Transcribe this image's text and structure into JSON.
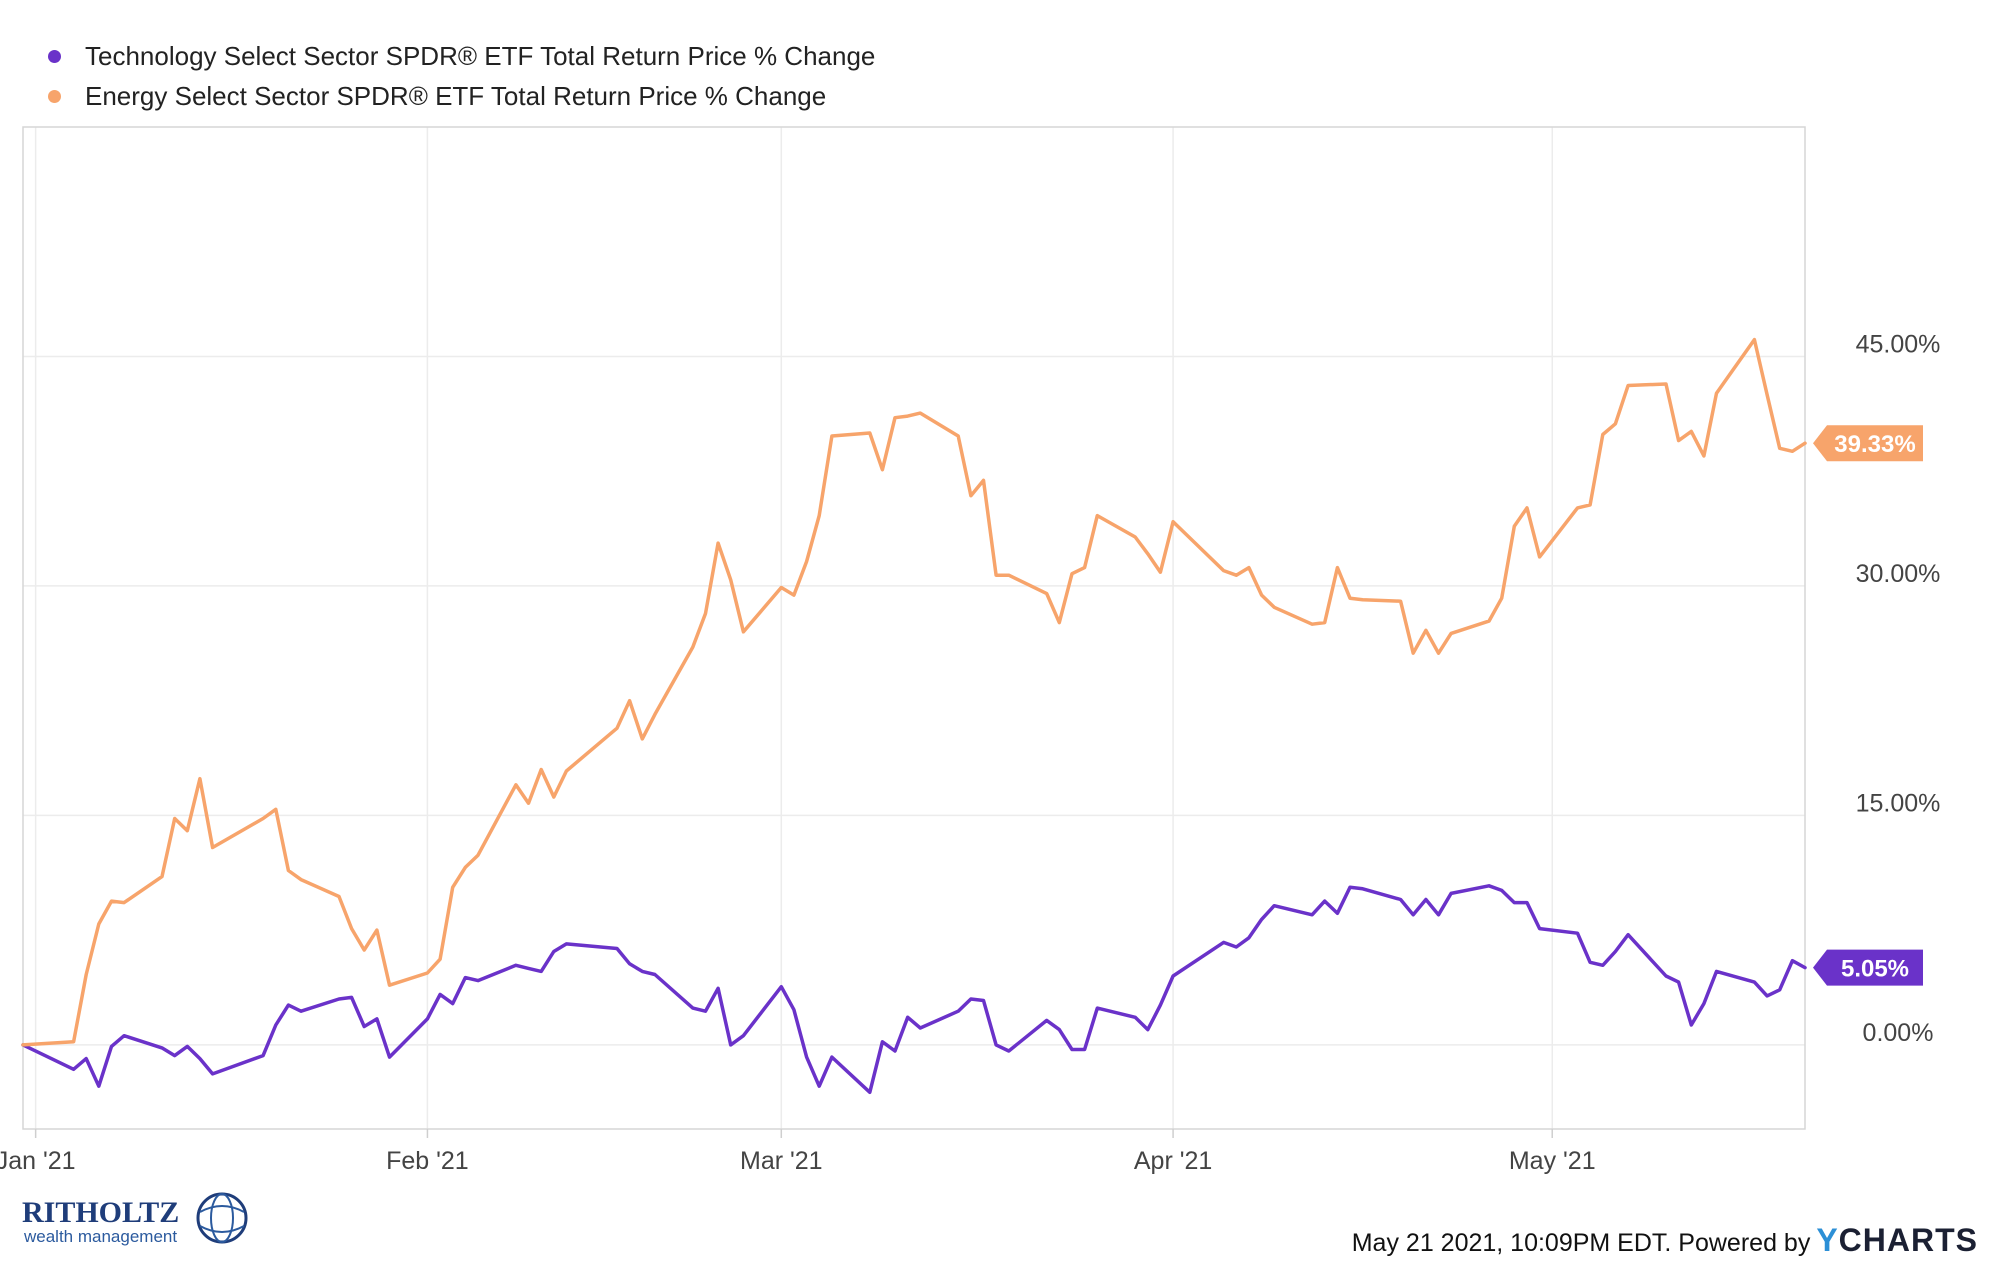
{
  "chart_data": {
    "type": "line",
    "title": "",
    "xlabel": "",
    "ylabel": "",
    "x_ticks": [
      "Jan '21",
      "Feb '21",
      "Mar '21",
      "Apr '21",
      "May '21"
    ],
    "y_ticks": [
      "0.00%",
      "15.00%",
      "30.00%",
      "45.00%"
    ],
    "ylim": [
      -5.5,
      60
    ],
    "xlim": [
      "2020-12-31",
      "2021-05-21"
    ],
    "grid": true,
    "legend_position": "top-left",
    "series": [
      {
        "name": "Technology Select Sector SPDR® ETF Total Return Price % Change",
        "color": "#6a32c9",
        "end_label": "5.05%",
        "points": [
          [
            "2020-12-31",
            0.0
          ],
          [
            "2021-01-04",
            -1.6
          ],
          [
            "2021-01-05",
            -0.9
          ],
          [
            "2021-01-06",
            -2.7
          ],
          [
            "2021-01-07",
            -0.1
          ],
          [
            "2021-01-08",
            0.6
          ],
          [
            "2021-01-11",
            -0.2
          ],
          [
            "2021-01-12",
            -0.7
          ],
          [
            "2021-01-13",
            -0.1
          ],
          [
            "2021-01-14",
            -0.9
          ],
          [
            "2021-01-15",
            -1.9
          ],
          [
            "2021-01-19",
            -0.7
          ],
          [
            "2021-01-20",
            1.3
          ],
          [
            "2021-01-21",
            2.6
          ],
          [
            "2021-01-22",
            2.2
          ],
          [
            "2021-01-25",
            3.0
          ],
          [
            "2021-01-26",
            3.1
          ],
          [
            "2021-01-27",
            1.2
          ],
          [
            "2021-01-28",
            1.7
          ],
          [
            "2021-01-29",
            -0.8
          ],
          [
            "2021-02-01",
            1.7
          ],
          [
            "2021-02-02",
            3.3
          ],
          [
            "2021-02-03",
            2.7
          ],
          [
            "2021-02-04",
            4.4
          ],
          [
            "2021-02-05",
            4.2
          ],
          [
            "2021-02-08",
            5.2
          ],
          [
            "2021-02-09",
            5.0
          ],
          [
            "2021-02-10",
            4.8
          ],
          [
            "2021-02-11",
            6.1
          ],
          [
            "2021-02-12",
            6.6
          ],
          [
            "2021-02-16",
            6.3
          ],
          [
            "2021-02-17",
            5.3
          ],
          [
            "2021-02-18",
            4.8
          ],
          [
            "2021-02-19",
            4.6
          ],
          [
            "2021-02-22",
            2.4
          ],
          [
            "2021-02-23",
            2.2
          ],
          [
            "2021-02-24",
            3.7
          ],
          [
            "2021-02-25",
            0.0
          ],
          [
            "2021-02-26",
            0.6
          ],
          [
            "2021-03-01",
            3.8
          ],
          [
            "2021-03-02",
            2.3
          ],
          [
            "2021-03-03",
            -0.8
          ],
          [
            "2021-03-04",
            -2.7
          ],
          [
            "2021-03-05",
            -0.8
          ],
          [
            "2021-03-08",
            -3.1
          ],
          [
            "2021-03-09",
            0.2
          ],
          [
            "2021-03-10",
            -0.4
          ],
          [
            "2021-03-11",
            1.8
          ],
          [
            "2021-03-12",
            1.1
          ],
          [
            "2021-03-15",
            2.2
          ],
          [
            "2021-03-16",
            3.0
          ],
          [
            "2021-03-17",
            2.9
          ],
          [
            "2021-03-18",
            0.0
          ],
          [
            "2021-03-19",
            -0.4
          ],
          [
            "2021-03-22",
            1.6
          ],
          [
            "2021-03-23",
            1.0
          ],
          [
            "2021-03-24",
            -0.3
          ],
          [
            "2021-03-25",
            -0.3
          ],
          [
            "2021-03-26",
            2.4
          ],
          [
            "2021-03-29",
            1.8
          ],
          [
            "2021-03-30",
            1.0
          ],
          [
            "2021-03-31",
            2.6
          ],
          [
            "2021-04-01",
            4.5
          ],
          [
            "2021-04-05",
            6.7
          ],
          [
            "2021-04-06",
            6.4
          ],
          [
            "2021-04-07",
            7.0
          ],
          [
            "2021-04-08",
            8.2
          ],
          [
            "2021-04-09",
            9.1
          ],
          [
            "2021-04-12",
            8.5
          ],
          [
            "2021-04-13",
            9.4
          ],
          [
            "2021-04-14",
            8.6
          ],
          [
            "2021-04-15",
            10.3
          ],
          [
            "2021-04-16",
            10.2
          ],
          [
            "2021-04-19",
            9.5
          ],
          [
            "2021-04-20",
            8.5
          ],
          [
            "2021-04-21",
            9.5
          ],
          [
            "2021-04-22",
            8.5
          ],
          [
            "2021-04-23",
            9.9
          ],
          [
            "2021-04-26",
            10.4
          ],
          [
            "2021-04-27",
            10.1
          ],
          [
            "2021-04-28",
            9.3
          ],
          [
            "2021-04-29",
            9.3
          ],
          [
            "2021-04-30",
            7.6
          ],
          [
            "2021-05-03",
            7.3
          ],
          [
            "2021-05-04",
            5.4
          ],
          [
            "2021-05-05",
            5.2
          ],
          [
            "2021-05-06",
            6.1
          ],
          [
            "2021-05-07",
            7.2
          ],
          [
            "2021-05-10",
            4.5
          ],
          [
            "2021-05-11",
            4.1
          ],
          [
            "2021-05-12",
            1.3
          ],
          [
            "2021-05-13",
            2.7
          ],
          [
            "2021-05-14",
            4.8
          ],
          [
            "2021-05-17",
            4.1
          ],
          [
            "2021-05-18",
            3.2
          ],
          [
            "2021-05-19",
            3.6
          ],
          [
            "2021-05-20",
            5.5
          ],
          [
            "2021-05-21",
            5.05
          ]
        ]
      },
      {
        "name": "Energy Select Sector SPDR® ETF Total Return Price % Change",
        "color": "#f7a46b",
        "end_label": "39.33%",
        "points": [
          [
            "2020-12-31",
            0.0
          ],
          [
            "2021-01-04",
            0.2
          ],
          [
            "2021-01-05",
            4.6
          ],
          [
            "2021-01-06",
            7.9
          ],
          [
            "2021-01-07",
            9.4
          ],
          [
            "2021-01-08",
            9.3
          ],
          [
            "2021-01-11",
            11.0
          ],
          [
            "2021-01-12",
            14.8
          ],
          [
            "2021-01-13",
            14.0
          ],
          [
            "2021-01-14",
            17.4
          ],
          [
            "2021-01-15",
            12.9
          ],
          [
            "2021-01-19",
            14.8
          ],
          [
            "2021-01-20",
            15.4
          ],
          [
            "2021-01-21",
            11.4
          ],
          [
            "2021-01-22",
            10.8
          ],
          [
            "2021-01-25",
            9.7
          ],
          [
            "2021-01-26",
            7.6
          ],
          [
            "2021-01-27",
            6.2
          ],
          [
            "2021-01-28",
            7.5
          ],
          [
            "2021-01-29",
            3.9
          ],
          [
            "2021-02-01",
            4.7
          ],
          [
            "2021-02-02",
            5.6
          ],
          [
            "2021-02-03",
            10.3
          ],
          [
            "2021-02-04",
            11.6
          ],
          [
            "2021-02-05",
            12.4
          ],
          [
            "2021-02-08",
            17.0
          ],
          [
            "2021-02-09",
            15.8
          ],
          [
            "2021-02-10",
            18.0
          ],
          [
            "2021-02-11",
            16.2
          ],
          [
            "2021-02-12",
            17.9
          ],
          [
            "2021-02-16",
            20.7
          ],
          [
            "2021-02-17",
            22.5
          ],
          [
            "2021-02-18",
            20.0
          ],
          [
            "2021-02-19",
            21.6
          ],
          [
            "2021-02-22",
            26.0
          ],
          [
            "2021-02-23",
            28.2
          ],
          [
            "2021-02-24",
            32.8
          ],
          [
            "2021-02-25",
            30.4
          ],
          [
            "2021-02-26",
            27.0
          ],
          [
            "2021-03-01",
            29.9
          ],
          [
            "2021-03-02",
            29.4
          ],
          [
            "2021-03-03",
            31.6
          ],
          [
            "2021-03-04",
            34.6
          ],
          [
            "2021-03-05",
            39.8
          ],
          [
            "2021-03-08",
            40.0
          ],
          [
            "2021-03-09",
            37.6
          ],
          [
            "2021-03-10",
            41.0
          ],
          [
            "2021-03-11",
            41.1
          ],
          [
            "2021-03-12",
            41.3
          ],
          [
            "2021-03-15",
            39.8
          ],
          [
            "2021-03-16",
            35.9
          ],
          [
            "2021-03-17",
            36.9
          ],
          [
            "2021-03-18",
            30.7
          ],
          [
            "2021-03-19",
            30.7
          ],
          [
            "2021-03-22",
            29.5
          ],
          [
            "2021-03-23",
            27.6
          ],
          [
            "2021-03-24",
            30.8
          ],
          [
            "2021-03-25",
            31.2
          ],
          [
            "2021-03-26",
            34.6
          ],
          [
            "2021-03-29",
            33.2
          ],
          [
            "2021-03-30",
            32.1
          ],
          [
            "2021-03-31",
            30.9
          ],
          [
            "2021-04-01",
            34.2
          ],
          [
            "2021-04-05",
            31.0
          ],
          [
            "2021-04-06",
            30.7
          ],
          [
            "2021-04-07",
            31.2
          ],
          [
            "2021-04-08",
            29.4
          ],
          [
            "2021-04-09",
            28.6
          ],
          [
            "2021-04-12",
            27.5
          ],
          [
            "2021-04-13",
            27.6
          ],
          [
            "2021-04-14",
            31.2
          ],
          [
            "2021-04-15",
            29.2
          ],
          [
            "2021-04-16",
            29.1
          ],
          [
            "2021-04-19",
            29.0
          ],
          [
            "2021-04-20",
            25.6
          ],
          [
            "2021-04-21",
            27.1
          ],
          [
            "2021-04-22",
            25.6
          ],
          [
            "2021-04-23",
            26.9
          ],
          [
            "2021-04-26",
            27.7
          ],
          [
            "2021-04-27",
            29.2
          ],
          [
            "2021-04-28",
            33.9
          ],
          [
            "2021-04-29",
            35.1
          ],
          [
            "2021-04-30",
            31.9
          ],
          [
            "2021-05-03",
            35.1
          ],
          [
            "2021-05-04",
            35.3
          ],
          [
            "2021-05-05",
            39.9
          ],
          [
            "2021-05-06",
            40.6
          ],
          [
            "2021-05-07",
            43.1
          ],
          [
            "2021-05-10",
            43.2
          ],
          [
            "2021-05-11",
            39.5
          ],
          [
            "2021-05-12",
            40.1
          ],
          [
            "2021-05-13",
            38.5
          ],
          [
            "2021-05-14",
            42.6
          ],
          [
            "2021-05-17",
            46.1
          ],
          [
            "2021-05-18",
            42.5
          ],
          [
            "2021-05-19",
            39.0
          ],
          [
            "2021-05-20",
            38.8
          ],
          [
            "2021-05-21",
            39.33
          ]
        ]
      }
    ]
  },
  "footer": {
    "brand_name": "RITHOLTZ",
    "brand_tagline": "wealth management",
    "stamp": "May 21 2021, 10:09PM EDT. Powered by",
    "logo_y": "Y",
    "logo_rest": "CHARTS"
  }
}
